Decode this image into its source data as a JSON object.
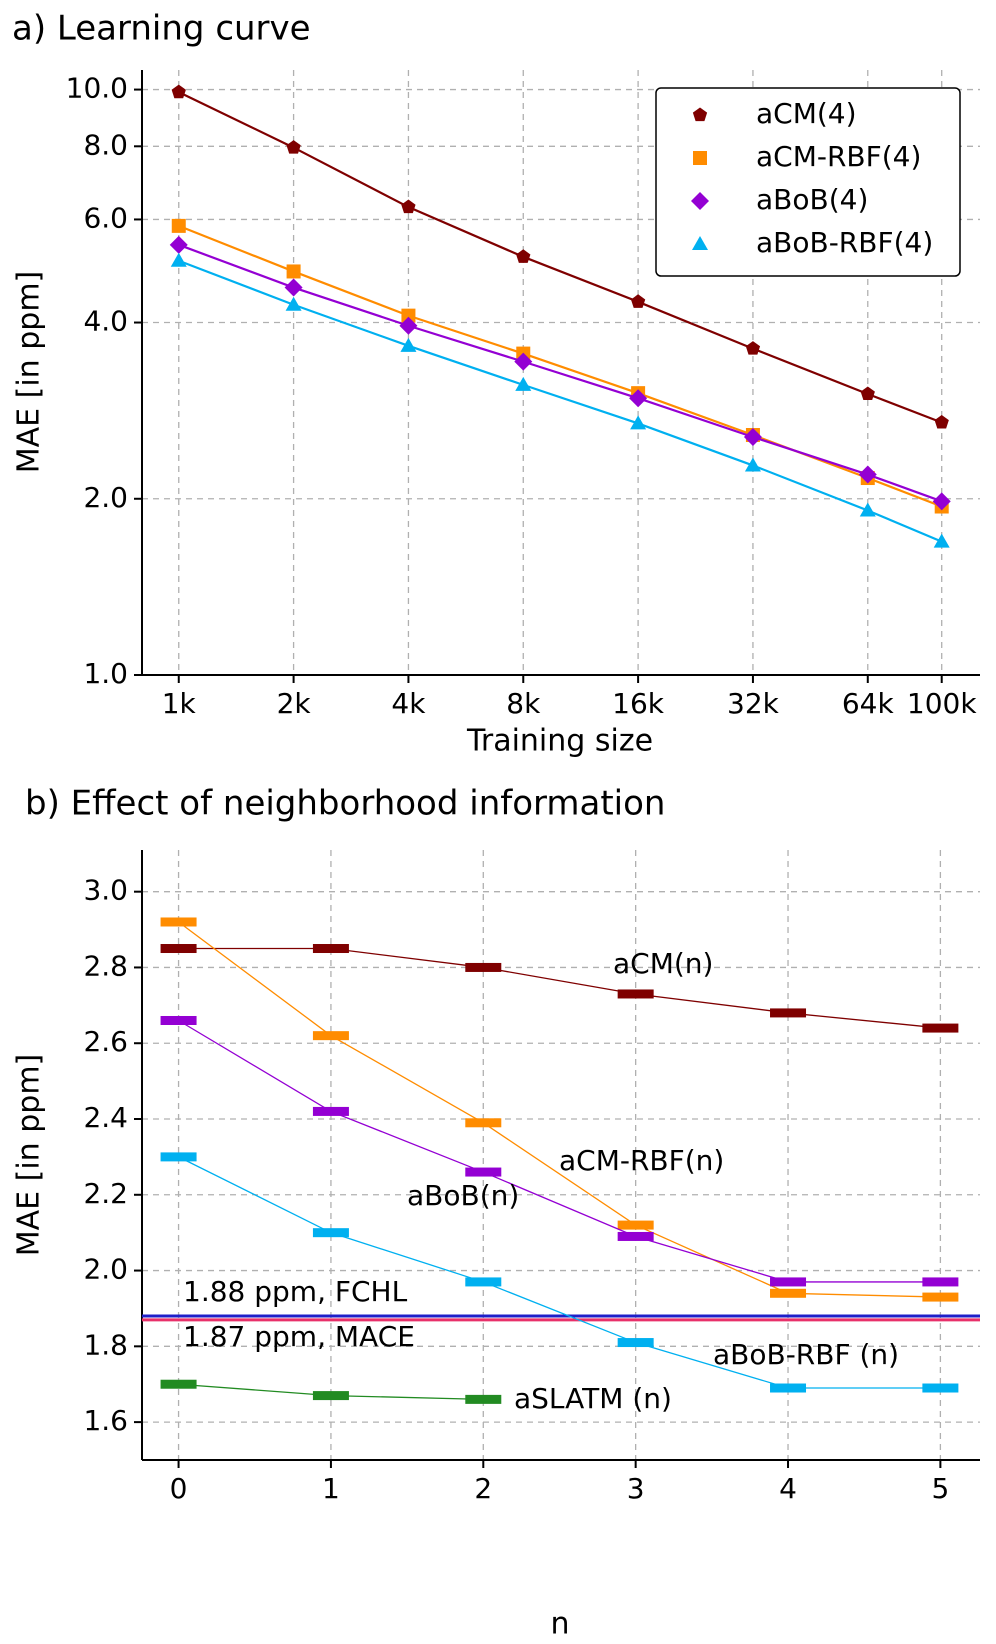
{
  "chart_data": [
    {
      "type": "line",
      "title": "a) Learning curve",
      "xlabel": "Training size",
      "ylabel": "MAE [in ppm]",
      "xscale": "log",
      "yscale": "log",
      "grid": true,
      "legend": "upper right",
      "x": [
        1000,
        2000,
        4000,
        8000,
        16000,
        32000,
        64000,
        100000
      ],
      "xlim": [
        801,
        126000
      ],
      "xticks": [
        {
          "value": 1000,
          "label": "1k"
        },
        {
          "value": 2000,
          "label": "2k"
        },
        {
          "value": 4000,
          "label": "4k"
        },
        {
          "value": 8000,
          "label": "8k"
        },
        {
          "value": 16000,
          "label": "16k"
        },
        {
          "value": 32000,
          "label": "32k"
        },
        {
          "value": 64000,
          "label": "64k"
        },
        {
          "value": 100000,
          "label": "100k"
        }
      ],
      "ylim": [
        1,
        10.8
      ],
      "yticks": [
        {
          "value": 1,
          "label": "1.0"
        },
        {
          "value": 2,
          "label": "2.0"
        },
        {
          "value": 4,
          "label": "4.0"
        },
        {
          "value": 6,
          "label": "6.0"
        },
        {
          "value": 8,
          "label": "8.0"
        },
        {
          "value": 10,
          "label": "10.0"
        }
      ],
      "series": [
        {
          "name": "aCM(4)",
          "color": "#7f0000",
          "marker": "pentagon",
          "values": [
            9.9,
            7.96,
            6.3,
            5.18,
            4.34,
            3.61,
            3.02,
            2.7
          ]
        },
        {
          "name": "aCM-RBF(4)",
          "color": "#ff8c00",
          "marker": "square",
          "values": [
            5.85,
            4.89,
            4.11,
            3.54,
            3.03,
            2.57,
            2.17,
            1.94
          ]
        },
        {
          "name": "aBoB(4)",
          "color": "#9400d3",
          "marker": "diamond",
          "values": [
            5.43,
            4.59,
            3.95,
            3.43,
            2.97,
            2.55,
            2.2,
            1.98
          ]
        },
        {
          "name": "aBoB-RBF(4)",
          "color": "#00b0f0",
          "marker": "triangle",
          "values": [
            5.1,
            4.29,
            3.65,
            3.13,
            2.69,
            2.28,
            1.91,
            1.69
          ]
        }
      ]
    },
    {
      "type": "line",
      "title": "b) Effect of neighborhood information",
      "xlabel": "n",
      "ylabel": "MAE [in ppm]",
      "grid": true,
      "x": [
        0,
        1,
        2,
        3,
        4,
        5
      ],
      "xlim": [
        -0.24,
        5.26
      ],
      "xticks": [
        0,
        1,
        2,
        3,
        4,
        5
      ],
      "ylim": [
        1.5,
        3.11
      ],
      "yticks": [
        1.6,
        1.8,
        {
          "value": 2,
          "label": "2.0"
        },
        2.2,
        2.4,
        2.6,
        2.8,
        {
          "value": 3,
          "label": "3.0"
        }
      ],
      "series": [
        {
          "name": "aCM(n)",
          "color": "#7f0000",
          "marker": "dash",
          "values": [
            2.85,
            2.85,
            2.8,
            2.73,
            2.68,
            2.64
          ]
        },
        {
          "name": "aCM-RBF(n)",
          "color": "#ff8c00",
          "marker": "dash",
          "values": [
            2.92,
            2.62,
            2.39,
            2.12,
            1.94,
            1.93
          ]
        },
        {
          "name": "aBoB(n)",
          "color": "#9400d3",
          "marker": "dash",
          "values": [
            2.66,
            2.42,
            2.26,
            2.09,
            1.97,
            1.97
          ]
        },
        {
          "name": "aBoB-RBF (n)",
          "color": "#00b0f0",
          "marker": "dash",
          "values": [
            2.3,
            2.1,
            1.97,
            1.81,
            1.69,
            1.69
          ]
        },
        {
          "name": "aSLATM (n)",
          "color": "#228b22",
          "marker": "dash",
          "values": [
            1.7,
            1.67,
            1.66,
            null,
            null,
            null
          ]
        }
      ],
      "reference_lines": [
        {
          "value": 1.88,
          "label": "1.88 ppm, FCHL",
          "color": "#1f1fc8"
        },
        {
          "value": 1.87,
          "label": "1.87 ppm, MACE",
          "color": "#e8306a"
        }
      ]
    }
  ]
}
